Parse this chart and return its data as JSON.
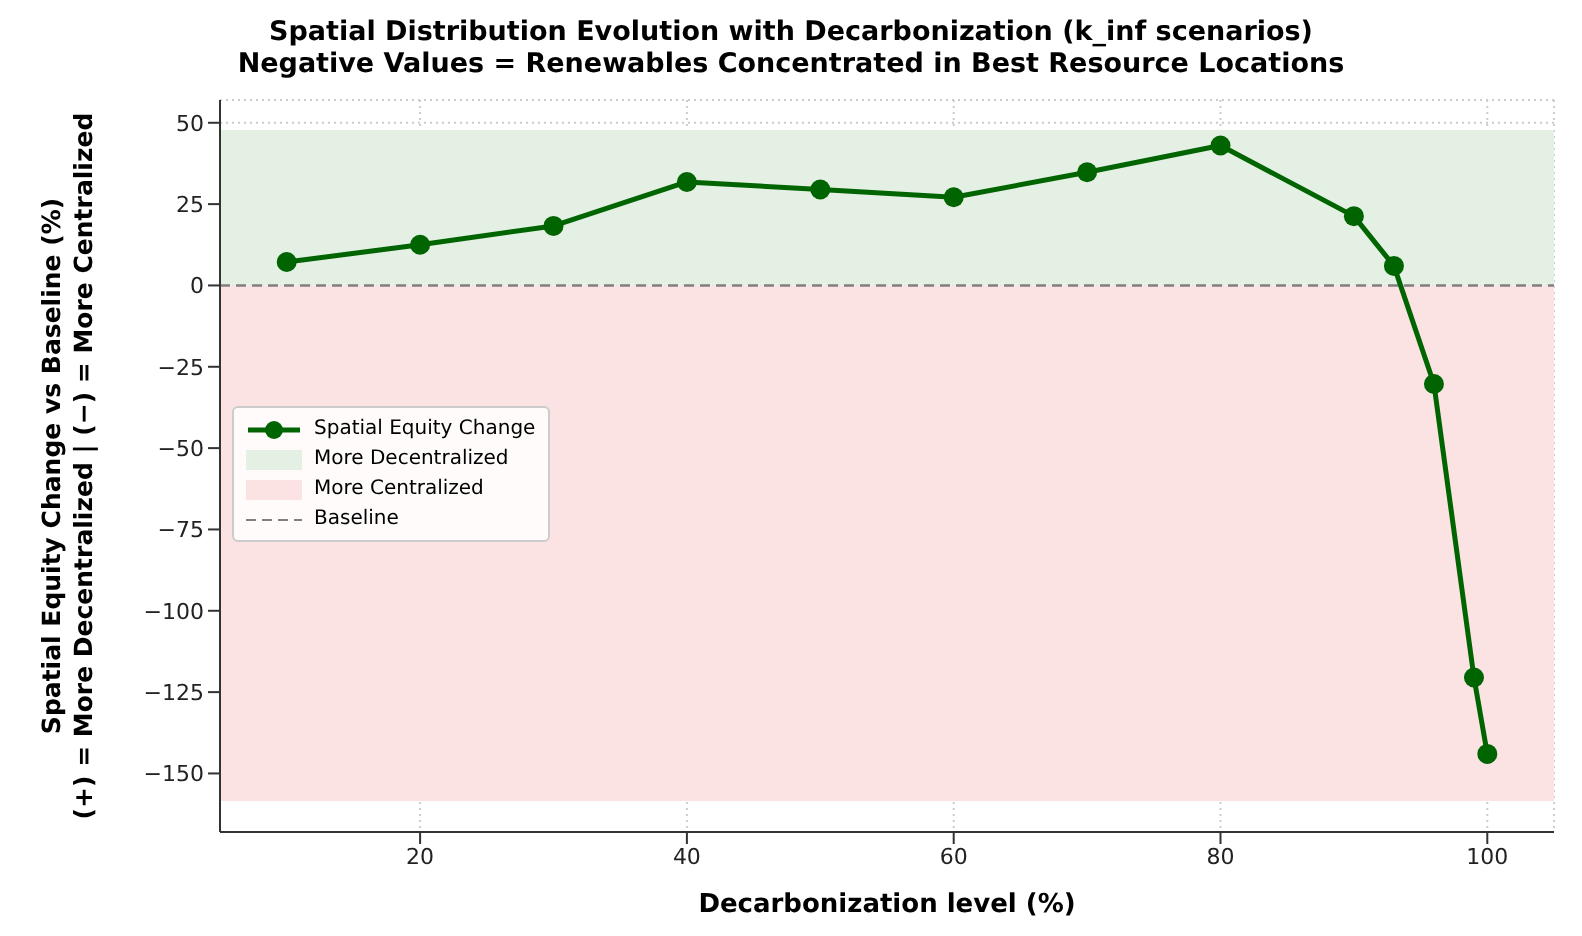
{
  "chart_data": {
    "type": "line",
    "title": "Spatial Distribution Evolution with Decarbonization (k_inf scenarios)\nNegative Values = Renewables Concentrated in Best Resource Locations",
    "xlabel": "Decarbonization level (%)",
    "ylabel": "Spatial Equity Change vs Baseline (%)\n(+) = More Decentralized | (−) = More Centralized",
    "x": [
      10,
      20,
      30,
      40,
      50,
      60,
      70,
      80,
      90,
      93,
      96,
      99,
      100
    ],
    "series": [
      {
        "name": "Spatial Equity Change",
        "color": "#006400",
        "values": [
          7.2,
          12.5,
          18.3,
          31.8,
          29.5,
          27.1,
          34.8,
          43,
          21.3,
          6,
          -30.3,
          -120.5,
          -144
        ]
      }
    ],
    "xlim": [
      5,
      105
    ],
    "xticks": [
      20,
      40,
      60,
      80,
      100
    ],
    "ylim": [
      -168,
      57
    ],
    "yticks": [
      -150,
      -125,
      -100,
      -75,
      -50,
      -25,
      0,
      25,
      50
    ],
    "bands": [
      {
        "axis": "y",
        "from": 0,
        "to": 47.8,
        "label": "More Decentralized",
        "color": "#e3f0e3"
      },
      {
        "axis": "y",
        "from": -158.5,
        "to": 0,
        "label": "More Centralized",
        "color": "#fce3e3"
      }
    ],
    "ref_lines": [
      {
        "axis": "y",
        "value": 0,
        "label": "Baseline",
        "color": "#808080",
        "line_style": "dashed"
      }
    ],
    "grid": true,
    "legend": "left",
    "marker": "circle",
    "line_style": "solid"
  }
}
